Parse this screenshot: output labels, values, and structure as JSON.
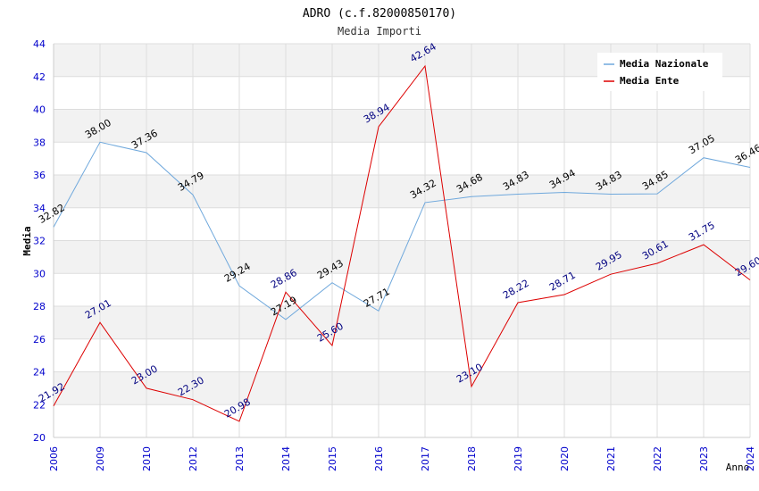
{
  "chart_data": {
    "type": "line",
    "title": "ADRO (c.f.82000850170)",
    "subtitle": "Media Importi",
    "xlabel": "Anno",
    "ylabel": "Media",
    "ylim": [
      20,
      44
    ],
    "yticks": [
      "20",
      "22",
      "24",
      "26",
      "28",
      "30",
      "32",
      "34",
      "36",
      "38",
      "40",
      "42",
      "44"
    ],
    "categories": [
      "2006",
      "2009",
      "2010",
      "2012",
      "2013",
      "2014",
      "2015",
      "2016",
      "2017",
      "2018",
      "2019",
      "2020",
      "2021",
      "2022",
      "2023",
      "2024"
    ],
    "series": [
      {
        "name": "Media Nazionale",
        "color": "#6fa8dc",
        "label_color": "#000000",
        "values": [
          32.82,
          38.0,
          37.36,
          34.79,
          29.24,
          27.19,
          29.43,
          27.71,
          34.32,
          34.68,
          34.83,
          34.94,
          34.83,
          34.85,
          37.05,
          36.46
        ],
        "labels": [
          "32.82",
          "38.00",
          "37.36",
          "34.79",
          "29.24",
          "27.19",
          "29.43",
          "27.71",
          "34.32",
          "34.68",
          "34.83",
          "34.94",
          "34.83",
          "34.85",
          "37.05",
          "36.46"
        ]
      },
      {
        "name": "Media Ente",
        "color": "#dd0000",
        "label_color": "#000080",
        "values": [
          21.92,
          27.01,
          23.0,
          22.3,
          20.98,
          28.86,
          25.6,
          38.94,
          42.64,
          23.1,
          28.22,
          28.71,
          29.95,
          30.61,
          31.75,
          29.6
        ],
        "labels": [
          "21.92",
          "27.01",
          "23.00",
          "22.30",
          "20.98",
          "28.86",
          "25.60",
          "38.94",
          "42.64",
          "23.10",
          "28.22",
          "28.71",
          "29.95",
          "30.61",
          "31.75",
          "29.60"
        ]
      }
    ],
    "legend_position": "top-right",
    "grid": true
  },
  "colors": {
    "band": "#f2f2f2",
    "grid": "#dddddd",
    "tick_text": "#0000cc",
    "title_text": "#000000"
  }
}
